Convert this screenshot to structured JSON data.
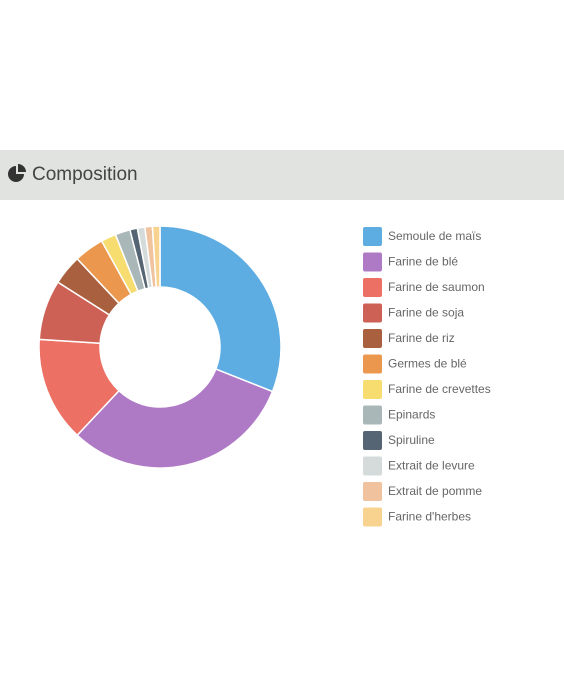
{
  "chart_data": {
    "type": "pie",
    "title": "Composition",
    "categories": [
      "Semoule de maïs",
      "Farine de blé",
      "Farine de saumon",
      "Farine de soja",
      "Farine de riz",
      "Germes de blé",
      "Farine de crevettes",
      "Epinards",
      "Spiruline",
      "Extrait de levure",
      "Extrait de pomme",
      "Farine d'herbes"
    ],
    "values": [
      31,
      31,
      14,
      8,
      4,
      4,
      2,
      2,
      1,
      1,
      1,
      1
    ],
    "colors": [
      "#5dade2",
      "#af7ac5",
      "#ec7063",
      "#cd6155",
      "#a9603f",
      "#eb984e",
      "#f7dc6f",
      "#aab7b8",
      "#566573",
      "#d5dbdb",
      "#f0c29e",
      "#f8d38f"
    ],
    "legend": "right"
  }
}
